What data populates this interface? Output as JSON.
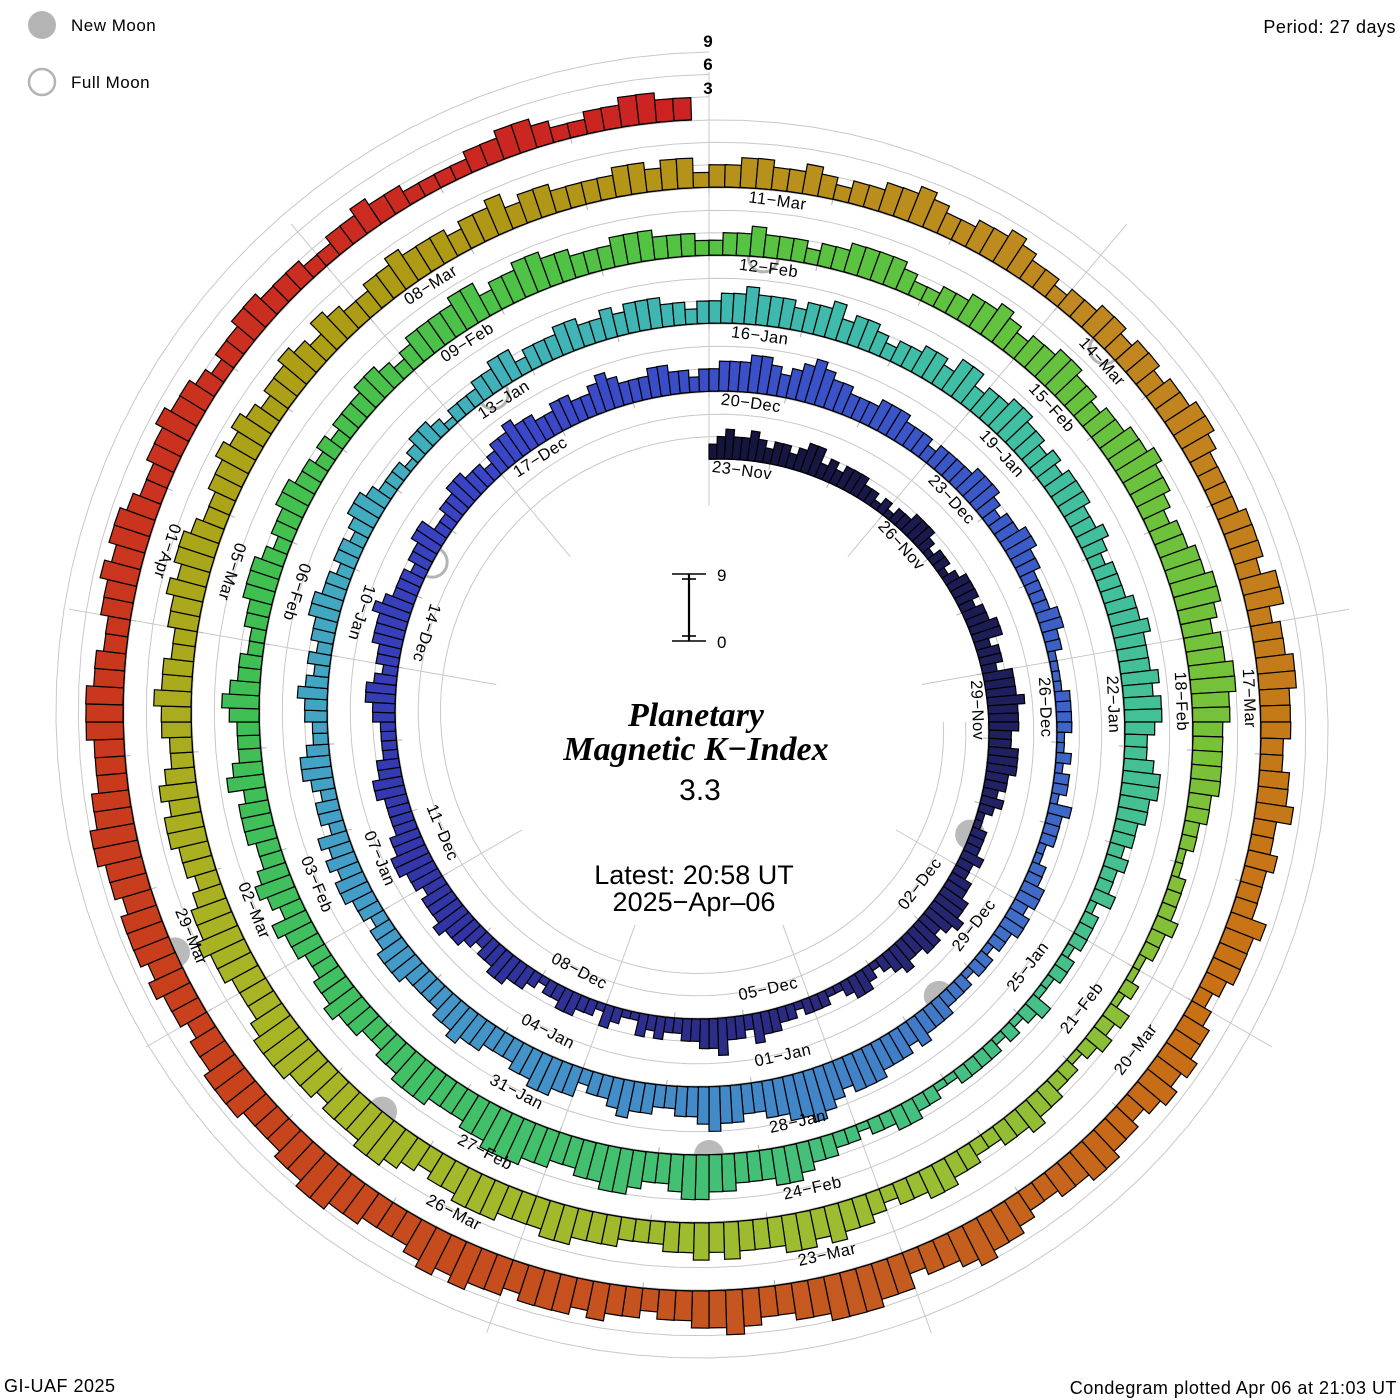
{
  "header": {
    "period_label": "Period: 27 days"
  },
  "legend": {
    "new_moon_label": "New Moon",
    "full_moon_label": "Full Moon"
  },
  "footer": {
    "left": "GI-UAF 2025",
    "right": "Condegram plotted Apr 06 at 21:03 UT"
  },
  "center": {
    "title_line1": "Planetary",
    "title_line2": "Magnetic K−Index",
    "current_value": "3.3",
    "latest_line1": "Latest: 20:58 UT",
    "latest_line2": "2025−Apr‒06",
    "scale_top": "9",
    "scale_bottom": "0"
  },
  "axis": {
    "tick3": "3",
    "tick6": "6",
    "tick9": "9"
  },
  "colors": {
    "accent_red": "#ee4136",
    "grid": "#c8c8c8",
    "day_tick": "#b0b0b0",
    "bar_outline": "#000000",
    "moon_gray": "#b4b4b4",
    "text": "#000000"
  },
  "chart_data": {
    "type": "bar",
    "subtype": "polar-spiral-condegram",
    "title": "Planetary Magnetic K-Index",
    "period_days": 27,
    "intervals_per_day": 8,
    "start_label": "23-Nov",
    "end_label": "06-Apr",
    "k_axis_ticks": [
      3,
      6,
      9
    ],
    "k_max": 9,
    "grid_on": true,
    "k_values": "23433432332344232333221212233321221233323344233244454443344433232112223223344543443343212332112221223342335443322323112312233221233443323445444344554433334433222233443233444543332334422334433234454433443345433344332334445543456544333444333233334443233443322223322111122221121221322211223323322122122233343444555456766554455654433445433244554433344544333344433233443434233234432233432323344332332344322212332122233442333443343444332334454443445344323344355344554434344433432333445444545543345544332322312221221132121222211223322122334554445566544566554455666554445554433445443344534543344435433345433223344432334433232333443234444553445544333444333223343332334444322334454344554434455655434455665455665544444332211222322112132321223343322334433234454554445454433344455444555443456655545566654445565543445545433445443344545543344545434454354334454443445344333344344233443343233445433445433233443443445543333444355344554443344533433354443234454543445544334556544355666554456554434454555455656544455665544455544344545554556655444555443344545543344544323344333223343322223344322334433",
    "date_labels": [
      {
        "day": 0,
        "label": "23−Nov"
      },
      {
        "day": 3,
        "label": "26−Nov"
      },
      {
        "day": 6,
        "label": "29−Nov"
      },
      {
        "day": 9,
        "label": "02−Dec"
      },
      {
        "day": 12,
        "label": "05−Dec"
      },
      {
        "day": 15,
        "label": "08−Dec"
      },
      {
        "day": 18,
        "label": "11−Dec"
      },
      {
        "day": 21,
        "label": "14−Dec"
      },
      {
        "day": 24,
        "label": "17−Dec"
      },
      {
        "day": 27,
        "label": "20−Dec"
      },
      {
        "day": 30,
        "label": "23−Dec"
      },
      {
        "day": 33,
        "label": "26−Dec"
      },
      {
        "day": 36,
        "label": "29−Dec"
      },
      {
        "day": 39,
        "label": "01−Jan"
      },
      {
        "day": 42,
        "label": "04−Jan"
      },
      {
        "day": 45,
        "label": "07−Jan"
      },
      {
        "day": 48,
        "label": "10−Jan"
      },
      {
        "day": 51,
        "label": "13−Jan"
      },
      {
        "day": 54,
        "label": "16−Jan"
      },
      {
        "day": 57,
        "label": "19−Jan"
      },
      {
        "day": 60,
        "label": "22−Jan"
      },
      {
        "day": 63,
        "label": "25−Jan"
      },
      {
        "day": 66,
        "label": "28−Jan"
      },
      {
        "day": 69,
        "label": "31−Jan"
      },
      {
        "day": 72,
        "label": "03−Feb"
      },
      {
        "day": 75,
        "label": "06−Feb"
      },
      {
        "day": 78,
        "label": "09−Feb"
      },
      {
        "day": 81,
        "label": "12−Feb"
      },
      {
        "day": 84,
        "label": "15−Feb"
      },
      {
        "day": 87,
        "label": "18−Feb"
      },
      {
        "day": 90,
        "label": "21−Feb"
      },
      {
        "day": 93,
        "label": "24−Feb"
      },
      {
        "day": 96,
        "label": "27−Feb"
      },
      {
        "day": 99,
        "label": "02−Mar"
      },
      {
        "day": 102,
        "label": "05−Mar"
      },
      {
        "day": 105,
        "label": "08−Mar"
      },
      {
        "day": 108,
        "label": "11−Mar"
      },
      {
        "day": 111,
        "label": "14−Mar"
      },
      {
        "day": 114,
        "label": "17−Mar"
      },
      {
        "day": 117,
        "label": "20−Mar"
      },
      {
        "day": 120,
        "label": "23−Mar"
      },
      {
        "day": 123,
        "label": "26−Mar"
      },
      {
        "day": 126,
        "label": "29−Mar"
      },
      {
        "day": 129,
        "label": "01−Apr"
      }
    ],
    "moons": {
      "new_moon_days": [
        8.5,
        37.5,
        67.5,
        97.5,
        126.5
      ],
      "full_moon_days": [
        22.5,
        51.5,
        81.5,
        111.5
      ]
    },
    "colormap": [
      [
        0,
        "#14143c"
      ],
      [
        6,
        "#1e1e5a"
      ],
      [
        12,
        "#2a2a80"
      ],
      [
        18,
        "#3236a8"
      ],
      [
        24,
        "#3a46c8"
      ],
      [
        30,
        "#3a57c8"
      ],
      [
        36,
        "#3f6cc8"
      ],
      [
        39,
        "#4284c8"
      ],
      [
        45,
        "#449cc8"
      ],
      [
        51,
        "#40b0bc"
      ],
      [
        57,
        "#3fbfa4"
      ],
      [
        63,
        "#46c08c"
      ],
      [
        69,
        "#42c06c"
      ],
      [
        75,
        "#3fbf52"
      ],
      [
        81,
        "#55c342"
      ],
      [
        87,
        "#72c23a"
      ],
      [
        93,
        "#9cbd32"
      ],
      [
        99,
        "#a8b424"
      ],
      [
        105,
        "#ac9c14"
      ],
      [
        111,
        "#c08820"
      ],
      [
        117,
        "#c87014"
      ],
      [
        120,
        "#c45c20"
      ],
      [
        126,
        "#c8401c"
      ],
      [
        135,
        "#cc2222"
      ]
    ]
  }
}
